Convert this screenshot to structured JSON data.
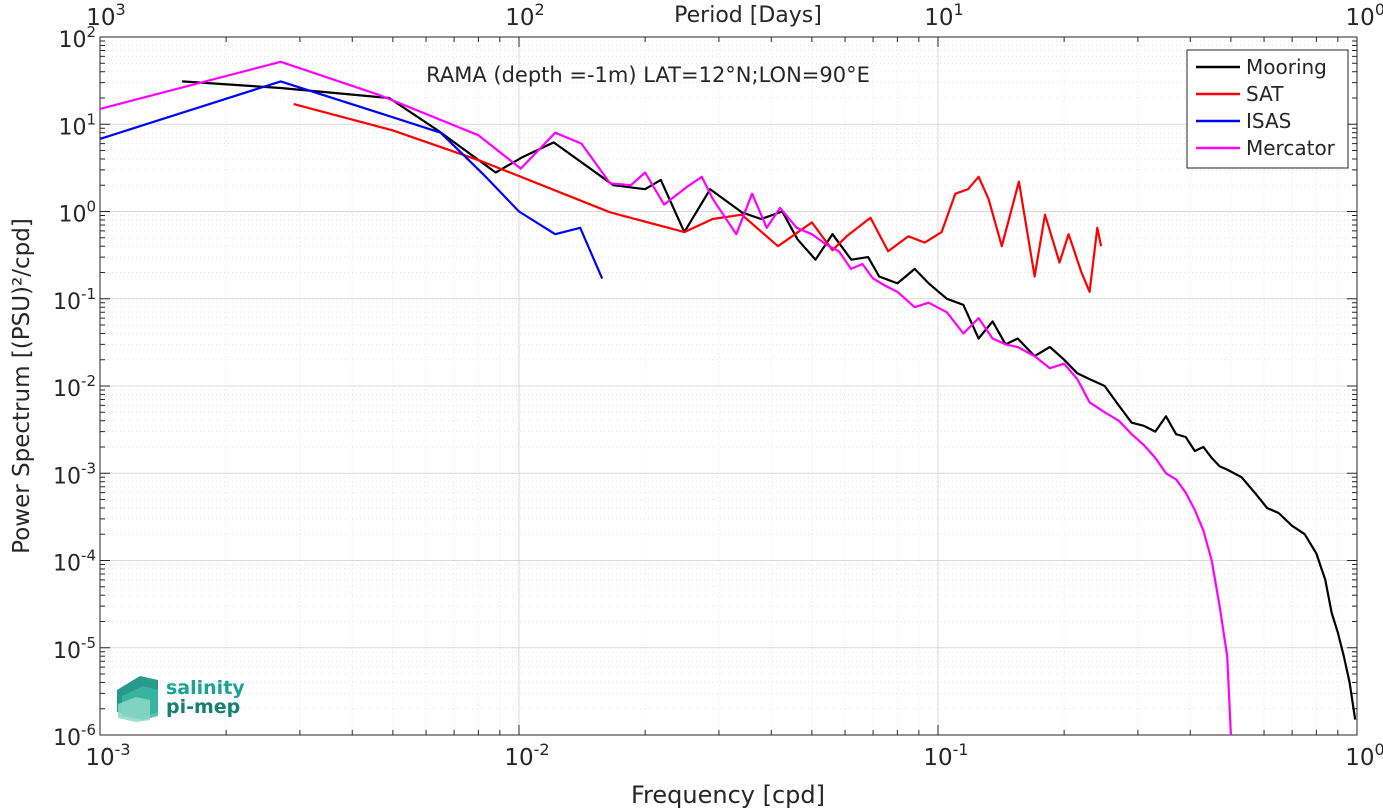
{
  "chart_data": {
    "type": "line",
    "title": "RAMA (depth =-1m) LAT=12°N;LON=90°E",
    "xlabel": "Frequency [cpd]",
    "ylabel": "Power Spectrum [(PSU)²/cpd]",
    "top_xlabel": "Period [Days]",
    "xscale": "log",
    "yscale": "log",
    "xlim": [
      0.001,
      1
    ],
    "ylim": [
      1e-06,
      100
    ],
    "grid": true,
    "legend_position": "top-right",
    "x_ticks": [
      {
        "value": 0.001,
        "base": "10",
        "exp": "-3"
      },
      {
        "value": 0.01,
        "base": "10",
        "exp": "-2"
      },
      {
        "value": 0.1,
        "base": "10",
        "exp": "-1"
      },
      {
        "value": 1,
        "base": "10",
        "exp": "0"
      }
    ],
    "top_x_ticks": [
      {
        "value": 0.001,
        "base": "10",
        "exp": "3"
      },
      {
        "value": 0.01,
        "base": "10",
        "exp": "2"
      },
      {
        "value": 0.1,
        "base": "10",
        "exp": "1"
      },
      {
        "value": 1,
        "base": "10",
        "exp": "0"
      }
    ],
    "y_ticks": [
      {
        "value": 100,
        "base": "10",
        "exp": "2"
      },
      {
        "value": 10,
        "base": "10",
        "exp": "1"
      },
      {
        "value": 1,
        "base": "10",
        "exp": "0"
      },
      {
        "value": 0.1,
        "base": "10",
        "exp": "-1"
      },
      {
        "value": 0.01,
        "base": "10",
        "exp": "-2"
      },
      {
        "value": 0.001,
        "base": "10",
        "exp": "-3"
      },
      {
        "value": 0.0001,
        "base": "10",
        "exp": "-4"
      },
      {
        "value": 1e-05,
        "base": "10",
        "exp": "-5"
      },
      {
        "value": 1e-06,
        "base": "10",
        "exp": "-6"
      }
    ],
    "series": [
      {
        "name": "Mooring",
        "color": "#000000",
        "x": [
          0.00157,
          0.0027,
          0.0049,
          0.0064,
          0.0088,
          0.0102,
          0.0121,
          0.0168,
          0.02,
          0.0218,
          0.0248,
          0.0286,
          0.034,
          0.0378,
          0.0425,
          0.0462,
          0.051,
          0.056,
          0.0621,
          0.0681,
          0.0724,
          0.08,
          0.088,
          0.095,
          0.105,
          0.115,
          0.125,
          0.135,
          0.145,
          0.155,
          0.17,
          0.185,
          0.2,
          0.215,
          0.23,
          0.25,
          0.27,
          0.29,
          0.31,
          0.33,
          0.35,
          0.37,
          0.39,
          0.41,
          0.43,
          0.45,
          0.47,
          0.49,
          0.53,
          0.57,
          0.61,
          0.65,
          0.7,
          0.75,
          0.8,
          0.84,
          0.87,
          0.9,
          0.93,
          0.96,
          0.99
        ],
        "y": [
          31,
          26,
          20,
          8.5,
          2.8,
          4.2,
          6.2,
          2.0,
          1.8,
          2.3,
          0.58,
          1.8,
          0.98,
          0.82,
          1.0,
          0.48,
          0.28,
          0.55,
          0.28,
          0.3,
          0.18,
          0.15,
          0.22,
          0.15,
          0.1,
          0.085,
          0.035,
          0.055,
          0.03,
          0.035,
          0.022,
          0.028,
          0.02,
          0.014,
          0.012,
          0.01,
          0.006,
          0.0038,
          0.0035,
          0.003,
          0.0045,
          0.0028,
          0.0026,
          0.0018,
          0.002,
          0.0015,
          0.0012,
          0.0011,
          0.0009,
          0.0006,
          0.0004,
          0.00035,
          0.00025,
          0.0002,
          0.00012,
          6e-05,
          2.5e-05,
          1.5e-05,
          8e-06,
          4e-06,
          1.5e-06
        ]
      },
      {
        "name": "SAT",
        "color": "#ff0000",
        "x": [
          0.0029,
          0.005,
          0.0081,
          0.0165,
          0.0248,
          0.029,
          0.034,
          0.0415,
          0.05,
          0.056,
          0.0605,
          0.069,
          0.076,
          0.085,
          0.093,
          0.102,
          0.11,
          0.118,
          0.125,
          0.132,
          0.142,
          0.156,
          0.17,
          0.18,
          0.195,
          0.205,
          0.22,
          0.23,
          0.24,
          0.245
        ],
        "y": [
          17,
          8.5,
          3.8,
          0.98,
          0.58,
          0.82,
          0.92,
          0.4,
          0.75,
          0.36,
          0.52,
          0.85,
          0.35,
          0.52,
          0.44,
          0.58,
          1.6,
          1.8,
          2.5,
          1.4,
          0.4,
          2.2,
          0.18,
          0.92,
          0.26,
          0.55,
          0.2,
          0.12,
          0.65,
          0.4
        ]
      },
      {
        "name": "ISAS",
        "color": "#0000ff",
        "x": [
          0.001,
          0.0027,
          0.005,
          0.0065,
          0.0082,
          0.01,
          0.0122,
          0.014,
          0.0158
        ],
        "y": [
          6.8,
          31,
          12,
          8.0,
          2.7,
          1.0,
          0.55,
          0.65,
          0.17
        ]
      },
      {
        "name": "Mercator",
        "color": "#ff00ff",
        "x": [
          0.001,
          0.0027,
          0.0046,
          0.008,
          0.0101,
          0.0122,
          0.0141,
          0.0165,
          0.0185,
          0.02,
          0.0222,
          0.0251,
          0.0273,
          0.029,
          0.033,
          0.036,
          0.039,
          0.042,
          0.046,
          0.05,
          0.054,
          0.058,
          0.062,
          0.066,
          0.07,
          0.075,
          0.08,
          0.088,
          0.095,
          0.105,
          0.115,
          0.125,
          0.135,
          0.145,
          0.155,
          0.17,
          0.185,
          0.2,
          0.215,
          0.23,
          0.25,
          0.27,
          0.29,
          0.31,
          0.33,
          0.35,
          0.37,
          0.39,
          0.41,
          0.43,
          0.45,
          0.47,
          0.49,
          0.5
        ],
        "y": [
          15,
          52,
          22,
          7.5,
          3.1,
          8.0,
          6.0,
          2.1,
          2.0,
          2.8,
          1.2,
          1.9,
          2.5,
          1.4,
          0.55,
          1.6,
          0.65,
          1.1,
          0.65,
          0.55,
          0.42,
          0.35,
          0.22,
          0.25,
          0.17,
          0.14,
          0.12,
          0.08,
          0.09,
          0.07,
          0.04,
          0.06,
          0.035,
          0.03,
          0.028,
          0.022,
          0.016,
          0.018,
          0.012,
          0.0065,
          0.005,
          0.004,
          0.0028,
          0.0021,
          0.0015,
          0.001,
          0.00085,
          0.0006,
          0.00038,
          0.00022,
          0.0001,
          3e-05,
          8e-06,
          1e-06
        ]
      }
    ]
  },
  "logo": {
    "line1": "salinity",
    "line2": "pi-mep"
  }
}
